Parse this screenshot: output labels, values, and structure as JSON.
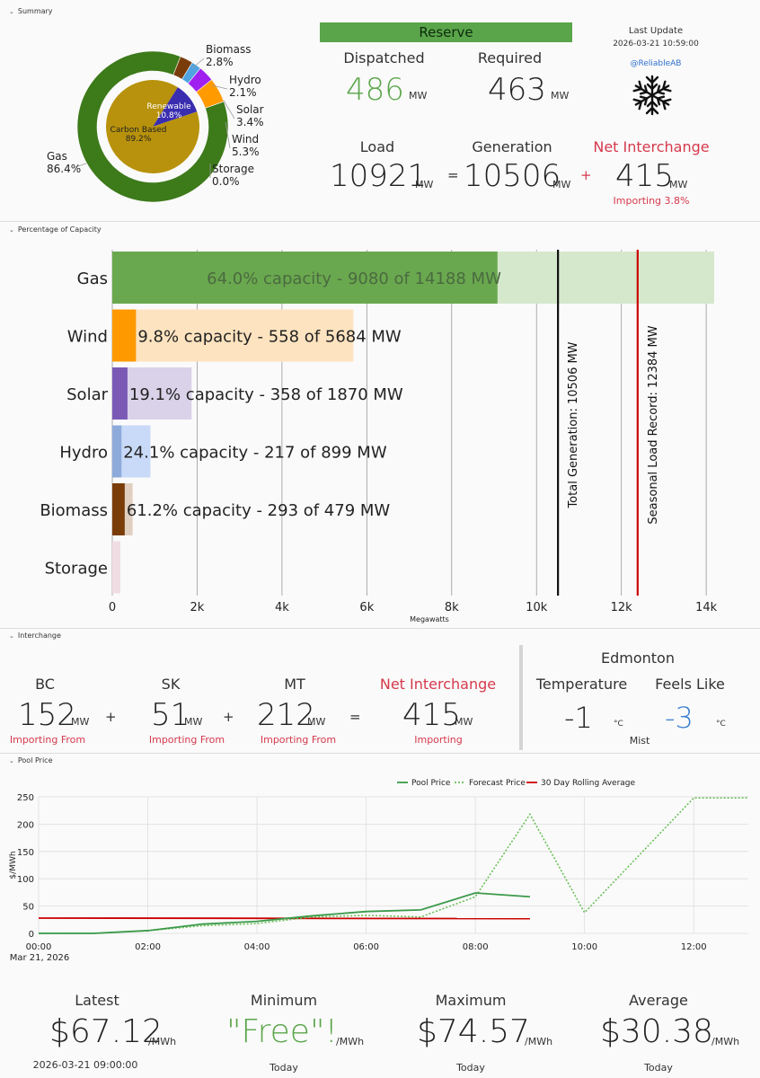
{
  "sections": {
    "summary": "Summary",
    "capacity": "Percentage of Capacity",
    "interchange": "Interchange",
    "pool": "Pool Price"
  },
  "summary": {
    "donut_inner": [
      {
        "label": "Renewable",
        "pct": "10.8%",
        "value": 10.8,
        "color": "#3a2db0"
      },
      {
        "label": "Carbon Based",
        "pct": "89.2%",
        "value": 89.2,
        "color": "#b8920c"
      }
    ],
    "donut_outer": [
      {
        "label": "Gas",
        "pct": "86.4%",
        "value": 86.4,
        "color": "#3d7a1a"
      },
      {
        "label": "Biomass",
        "pct": "2.8%",
        "value": 2.8,
        "color": "#7a3d0a"
      },
      {
        "label": "Hydro",
        "pct": "2.1%",
        "value": 2.1,
        "color": "#4fa3e0"
      },
      {
        "label": "Solar",
        "pct": "3.4%",
        "value": 3.4,
        "color": "#a020f0"
      },
      {
        "label": "Wind",
        "pct": "5.3%",
        "value": 5.3,
        "color": "#ff9a00"
      },
      {
        "label": "Storage",
        "pct": "0.0%",
        "value": 0.0,
        "color": "#cccccc"
      }
    ]
  },
  "reserve": {
    "banner": "Reserve",
    "dispatched_label": "Dispatched",
    "dispatched_value": "486",
    "required_label": "Required",
    "required_value": "463",
    "unit": "MW"
  },
  "update": {
    "label": "Last Update",
    "time": "2026-03-21 10:59:00",
    "handle": "@ReliableAB",
    "icon": "snowflake-icon"
  },
  "balance": {
    "load_label": "Load",
    "load_value": "10921",
    "generation_label": "Generation",
    "generation_value": "10506",
    "net_label": "Net Interchange",
    "net_value": "415",
    "net_sub": "Importing 3.8%",
    "unit": "MW",
    "eq": "=",
    "plus": "+"
  },
  "chart_data": [
    {
      "type": "bar",
      "xlabel": "Megawatts",
      "xlim": [
        0,
        14500
      ],
      "xticks": [
        "0",
        "2k",
        "4k",
        "6k",
        "8k",
        "10k",
        "12k",
        "14k"
      ],
      "categories": [
        "Gas",
        "Wind",
        "Solar",
        "Hydro",
        "Biomass",
        "Storage"
      ],
      "generation": [
        9080,
        558,
        358,
        217,
        293,
        0
      ],
      "capacity": [
        14188,
        5684,
        1870,
        899,
        479,
        190
      ],
      "labels": [
        "64.0% capacity - 9080 of 14188 MW",
        "9.8% capacity - 558 of 5684 MW",
        "19.1% capacity - 358 of 1870 MW",
        "24.1% capacity - 217 of 899 MW",
        "61.2% capacity - 293 of 479 MW",
        ""
      ],
      "gen_colors": [
        "#6aa84f",
        "#ff9900",
        "#7b5ab6",
        "#8eaadb",
        "#7a3d0a",
        "#e8c8d0"
      ],
      "cap_colors": [
        "#d6e8cc",
        "#fde3bf",
        "#d9d2e9",
        "#c9daf8",
        "#e0cfc0",
        "#f0dde3"
      ],
      "lines": [
        {
          "label": "Total Generation: 10506 MW",
          "value": 10506,
          "color": "#111111"
        },
        {
          "label": "Seasonal Load Record: 12384 MW",
          "value": 12384,
          "color": "#cc0000"
        }
      ]
    },
    {
      "type": "line",
      "ylabel": "$/MWh",
      "ylim": [
        0,
        260
      ],
      "yticks": [
        "0",
        "50",
        "100",
        "150",
        "200",
        "250"
      ],
      "xticks": [
        "00:00",
        "02:00",
        "04:00",
        "06:00",
        "08:00",
        "10:00",
        "12:00"
      ],
      "xdate": "Mar 21, 2026",
      "xlim_hours": [
        0,
        13
      ],
      "series": [
        {
          "name": "Pool Price",
          "color": "#3b9a4a",
          "style": "solid",
          "x": [
            0,
            1,
            2,
            3,
            4,
            5,
            6,
            7,
            8,
            9
          ],
          "y": [
            0,
            0,
            5,
            17,
            22,
            32,
            40,
            43,
            74,
            67
          ]
        },
        {
          "name": "Forecast Price",
          "color": "#6bbf59",
          "style": "dotted",
          "x": [
            0,
            1,
            2,
            3,
            4,
            5,
            6,
            7,
            8,
            9,
            10,
            12,
            13
          ],
          "y": [
            0,
            0,
            5,
            14,
            18,
            30,
            33,
            30,
            67,
            218,
            38,
            248,
            248
          ]
        },
        {
          "name": "30 Day Rolling Average",
          "color": "#cc0000",
          "style": "solid",
          "x": [
            0,
            9
          ],
          "y": [
            28,
            27
          ]
        }
      ]
    }
  ],
  "interchange": {
    "items": [
      {
        "region": "BC",
        "value": "152",
        "sub": "Importing From"
      },
      {
        "region": "SK",
        "value": "51",
        "sub": "Importing From"
      },
      {
        "region": "MT",
        "value": "212",
        "sub": "Importing From"
      }
    ],
    "net_label": "Net Interchange",
    "net_value": "415",
    "net_sub": "Importing",
    "unit": "MW",
    "plus": "+",
    "eq": "="
  },
  "weather": {
    "city": "Edmonton",
    "temp_label": "Temperature",
    "temp_value": "-1",
    "feels_label": "Feels Like",
    "feels_value": "-3",
    "unit": "°C",
    "condition": "Mist"
  },
  "stats": [
    {
      "label": "Latest",
      "value": "$67.12",
      "unit": "/MWh",
      "sub": "2026-03-21 09:00:00"
    },
    {
      "label": "Minimum",
      "value": "\"Free\"!",
      "unit": "/MWh",
      "sub": "Today"
    },
    {
      "label": "Maximum",
      "value": "$74.57",
      "unit": "/MWh",
      "sub": "Today"
    },
    {
      "label": "Average",
      "value": "$30.38",
      "unit": "/MWh",
      "sub": "Today"
    }
  ]
}
